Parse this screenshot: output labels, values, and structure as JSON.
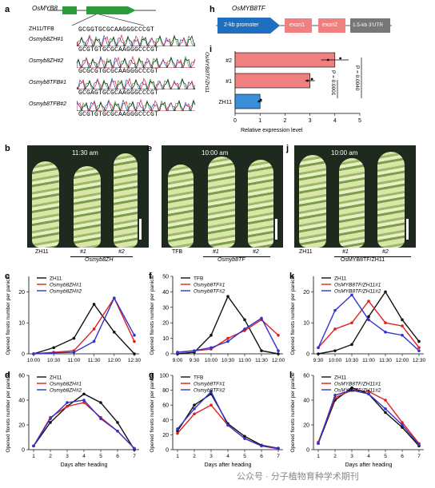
{
  "panel_a": {
    "letter": "a",
    "gene": "OsMYB8",
    "ref_label": "ZH11/TFB",
    "ref_seq": "GCGGTGCGCAAGGGCCCGT",
    "rows": [
      {
        "name": "Osmyb8ZH#1",
        "seq": "GCGTGTGCGCAAGGGCCCGT"
      },
      {
        "name": "Osmyb8ZH#2",
        "seq": "GCGCGTGCGCAAGGGCCCGT"
      },
      {
        "name": "Osmyb8TFB#1",
        "seq": "GCGAGTGCGCAAGGGCCCGT"
      },
      {
        "name": "Osmyb8TFB#2",
        "seq": "GCGTGTGCGCAAGGGCCCGT"
      }
    ]
  },
  "panel_h": {
    "letter": "h",
    "title": "OsMYB8TF",
    "promoter": "2-kb promoter",
    "exon1": "exon1",
    "exon2": "exon2",
    "utr": "1.5-kb 3'UTR"
  },
  "panel_i": {
    "letter": "i",
    "ylabel": "OsMYB8TF/ZH11",
    "xlabel": "Relative expression level",
    "pvals": [
      "P = 0.0001",
      "P = 0.0040"
    ],
    "chart_data": {
      "type": "bar",
      "categories": [
        "#2",
        "#1",
        "ZH11"
      ],
      "values": [
        4.0,
        3.0,
        1.0
      ],
      "errors": [
        0.55,
        0.2,
        0.08
      ],
      "xlim": [
        0,
        5
      ],
      "xticks": [
        "0",
        "1",
        "2",
        "3",
        "4",
        "5"
      ],
      "colors": [
        "#f08080",
        "#f08080",
        "#3b8fd9"
      ]
    }
  },
  "photos": {
    "b": {
      "letter": "b",
      "time": "11:30 am",
      "labels": [
        "ZH11",
        "#1",
        "#2"
      ],
      "group": "Osmyb8ZH"
    },
    "e": {
      "letter": "e",
      "time": "10:00 am",
      "labels": [
        "TFB",
        "#1",
        "#2"
      ],
      "group": "Osmyb8TF"
    },
    "j": {
      "letter": "j",
      "time": "10:00 am",
      "labels": [
        "ZH11",
        "#1",
        "#2"
      ],
      "group": "OsMYB8TF/ZH11"
    }
  },
  "line_charts": [
    {
      "letter": "c",
      "ylabel": "Opened florets number per panicle",
      "legend": [
        "ZH11",
        "Osmyb8ZH#1",
        "Osmyb8ZH#2"
      ],
      "chart_data": {
        "type": "line",
        "x": [
          "10:00",
          "10:30",
          "11:00",
          "11:30",
          "12:00",
          "12:30"
        ],
        "ylim": [
          0,
          25
        ],
        "yticks": [
          0,
          10,
          20
        ],
        "series": [
          {
            "name": "ZH11",
            "color": "#111111",
            "values": [
              0,
              2,
              5,
              16,
              7,
              0
            ]
          },
          {
            "name": "Osmyb8ZH#1",
            "color": "#e02020",
            "values": [
              0,
              0.5,
              1,
              8,
              18,
              4
            ]
          },
          {
            "name": "Osmyb8ZH#2",
            "color": "#3333cc",
            "values": [
              0,
              0.3,
              0.5,
              4,
              18,
              6
            ]
          }
        ]
      }
    },
    {
      "letter": "f",
      "ylabel": "Opened florets number per panicle",
      "legend": [
        "TFB",
        "Osmyb8TF#1",
        "Osmyb8TF#2"
      ],
      "chart_data": {
        "type": "line",
        "x": [
          "9:00",
          "9:30",
          "10:00",
          "10:30",
          "11:00",
          "11:30",
          "12:00"
        ],
        "ylim": [
          0,
          50
        ],
        "yticks": [
          0,
          10,
          20,
          30,
          40,
          50
        ],
        "series": [
          {
            "name": "TFB",
            "color": "#111111",
            "values": [
              0,
              1,
              12,
              37,
              22,
              2,
              0
            ]
          },
          {
            "name": "Osmyb8TF#1",
            "color": "#e02020",
            "values": [
              1,
              2,
              3,
              10,
              15,
              22,
              12
            ]
          },
          {
            "name": "Osmyb8TF#2",
            "color": "#3333cc",
            "values": [
              1,
              2,
              4,
              8,
              16,
              23,
              2
            ]
          }
        ]
      }
    },
    {
      "letter": "k",
      "ylabel": "Opened florets number per panicle",
      "legend": [
        "ZH11",
        "OsMYB8TF/ZH11#1",
        "OsMYB8TF/ZH11#2"
      ],
      "chart_data": {
        "type": "line",
        "x": [
          "9:30",
          "10:00",
          "10:30",
          "11:00",
          "11:30",
          "12:00",
          "12:30"
        ],
        "ylim": [
          0,
          25
        ],
        "yticks": [
          0,
          10,
          20
        ],
        "series": [
          {
            "name": "ZH11",
            "color": "#111111",
            "values": [
              0,
              1,
              3,
              12,
              20,
              11,
              4
            ]
          },
          {
            "name": "OsMYB8TF/ZH11#1",
            "color": "#e02020",
            "values": [
              2,
              8,
              10,
              17,
              10,
              9,
              2
            ]
          },
          {
            "name": "OsMYB8TF/ZH11#2",
            "color": "#3333cc",
            "values": [
              2,
              14,
              19,
              11,
              7,
              6,
              1
            ]
          }
        ]
      }
    },
    {
      "letter": "d",
      "ylabel": "Opened florets number per panicle",
      "xlabel": "Days after heading",
      "legend": [
        "ZH11",
        "Osmyb8ZH#1",
        "Osmyb8ZH#2"
      ],
      "chart_data": {
        "type": "line",
        "x": [
          "1",
          "2",
          "3",
          "4",
          "5",
          "6",
          "7"
        ],
        "ylim": [
          0,
          60
        ],
        "yticks": [
          0,
          20,
          40,
          60
        ],
        "series": [
          {
            "name": "ZH11",
            "color": "#111111",
            "values": [
              3,
              22,
              35,
              45,
              38,
              22,
              0
            ]
          },
          {
            "name": "Osmyb8ZH#1",
            "color": "#e02020",
            "values": [
              3,
              26,
              35,
              38,
              26,
              15,
              1
            ]
          },
          {
            "name": "Osmyb8ZH#2",
            "color": "#3333cc",
            "values": [
              3,
              25,
              38,
              40,
              25,
              15,
              1
            ]
          }
        ]
      }
    },
    {
      "letter": "g",
      "ylabel": "Opened florets number per panicle",
      "xlabel": "Days after heading",
      "legend": [
        "TFB",
        "Osmyb8TF#1",
        "Osmyb8TF#2"
      ],
      "chart_data": {
        "type": "line",
        "x": [
          "1",
          "2",
          "3",
          "4",
          "5",
          "6",
          "7"
        ],
        "ylim": [
          0,
          100
        ],
        "yticks": [
          0,
          20,
          40,
          60,
          80,
          100
        ],
        "series": [
          {
            "name": "TFB",
            "color": "#111111",
            "values": [
              25,
              60,
              75,
              35,
              18,
              6,
              2
            ]
          },
          {
            "name": "Osmyb8TF#1",
            "color": "#e02020",
            "values": [
              22,
              48,
              60,
              33,
              15,
              5,
              1
            ]
          },
          {
            "name": "Osmyb8TF#2",
            "color": "#3333cc",
            "values": [
              28,
              55,
              78,
              33,
              15,
              5,
              2
            ]
          }
        ]
      }
    },
    {
      "letter": "l",
      "ylabel": "Opened florets number per panicle",
      "xlabel": "Days after heading",
      "legend": [
        "ZH11",
        "OsMYB8TF/ZH11#1",
        "OsMYB8TF/ZH11#2"
      ],
      "chart_data": {
        "type": "line",
        "x": [
          "1",
          "2",
          "3",
          "4",
          "5",
          "6",
          "7"
        ],
        "ylim": [
          0,
          60
        ],
        "yticks": [
          0,
          20,
          40,
          60
        ],
        "series": [
          {
            "name": "ZH11",
            "color": "#111111",
            "values": [
              5,
              40,
              50,
              45,
              30,
              18,
              3
            ]
          },
          {
            "name": "OsMYB8TF/ZH11#1",
            "color": "#e02020",
            "values": [
              6,
              42,
              48,
              47,
              40,
              22,
              5
            ]
          },
          {
            "name": "OsMYB8TF/ZH11#2",
            "color": "#3333cc",
            "values": [
              5,
              44,
              48,
              45,
              33,
              20,
              4
            ]
          }
        ]
      }
    }
  ],
  "watermark": "公众号 · 分子植物育种学术期刊"
}
